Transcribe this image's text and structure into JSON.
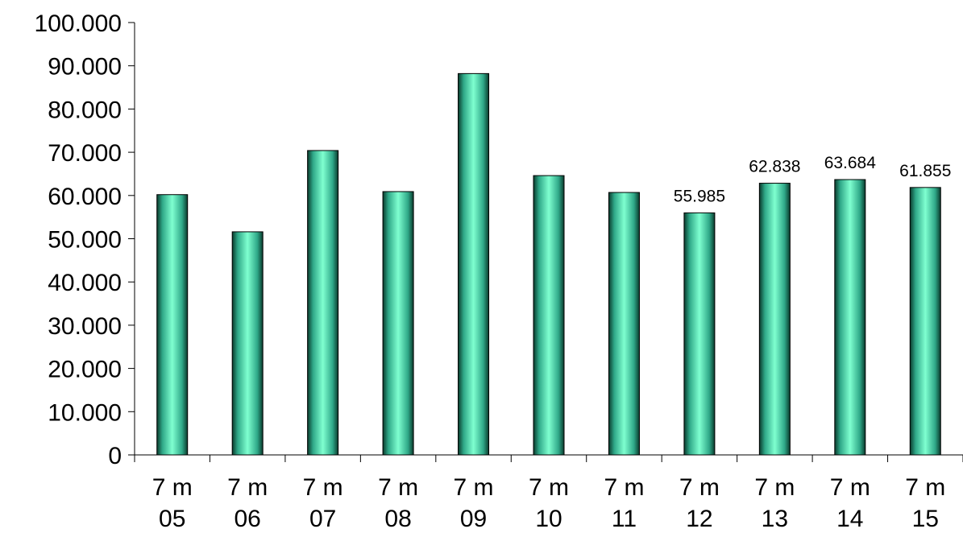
{
  "chart_data": {
    "type": "bar",
    "categories": [
      "7 m 05",
      "7 m 06",
      "7 m 07",
      "7 m 08",
      "7 m 09",
      "7 m 10",
      "7 m 11",
      "7 m 12",
      "7 m 13",
      "7 m 14",
      "7 m 15"
    ],
    "category_lines": [
      [
        "7 m",
        "05"
      ],
      [
        "7 m",
        "06"
      ],
      [
        "7 m",
        "07"
      ],
      [
        "7 m",
        "08"
      ],
      [
        "7 m",
        "09"
      ],
      [
        "7 m",
        "10"
      ],
      [
        "7 m",
        "11"
      ],
      [
        "7 m",
        "12"
      ],
      [
        "7 m",
        "13"
      ],
      [
        "7 m",
        "14"
      ],
      [
        "7 m",
        "15"
      ]
    ],
    "values": [
      60200,
      51600,
      70400,
      60900,
      88200,
      64600,
      60700,
      55985,
      62838,
      63684,
      61855
    ],
    "data_labels": [
      "",
      "",
      "",
      "",
      "",
      "",
      "",
      "55.985",
      "62.838",
      "63.684",
      "61.855"
    ],
    "y_ticks": [
      0,
      10000,
      20000,
      30000,
      40000,
      50000,
      60000,
      70000,
      80000,
      90000,
      100000
    ],
    "y_tick_labels": [
      "0",
      "10.000",
      "20.000",
      "30.000",
      "40.000",
      "50.000",
      "60.000",
      "70.000",
      "80.000",
      "90.000",
      "100.000"
    ],
    "ylim": [
      0,
      100000
    ],
    "title": "",
    "xlabel": "",
    "ylabel": "",
    "grid": false,
    "legend": "none",
    "colors": {
      "bar_light": "#7fffd0",
      "bar_mid": "#3fc8a0",
      "bar_dark": "#0a3a2c",
      "axis": "#000000"
    }
  }
}
